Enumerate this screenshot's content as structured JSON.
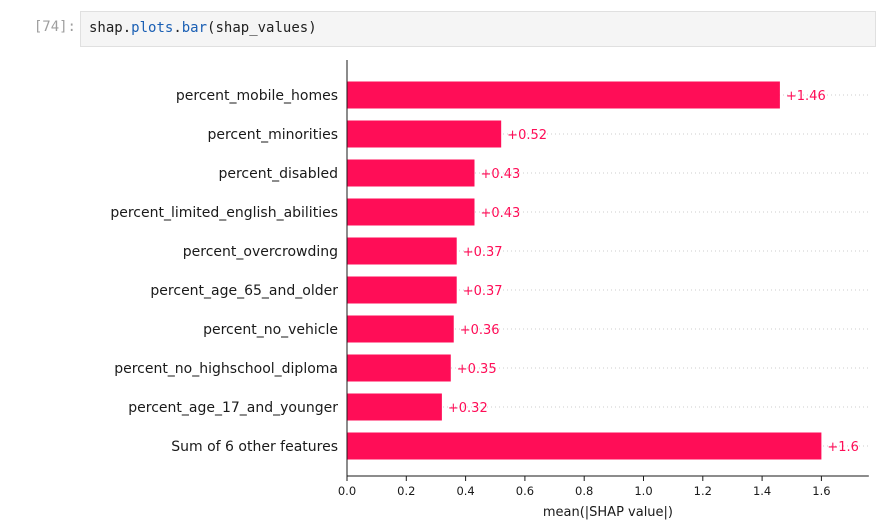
{
  "cell": {
    "prompt": "[74]:",
    "code_obj": "shap",
    "code_dot1": ".",
    "code_mod": "plots",
    "code_dot2": ".",
    "code_fn": "bar",
    "code_args": "(shap_values)"
  },
  "chart_data": {
    "type": "bar",
    "orientation": "horizontal",
    "categories": [
      "percent_mobile_homes",
      "percent_minorities",
      "percent_disabled",
      "percent_limited_english_abilities",
      "percent_overcrowding",
      "percent_age_65_and_older",
      "percent_no_vehicle",
      "percent_no_highschool_diploma",
      "percent_age_17_and_younger",
      "Sum of 6 other features"
    ],
    "values": [
      1.46,
      0.52,
      0.43,
      0.43,
      0.37,
      0.37,
      0.36,
      0.35,
      0.32,
      1.6
    ],
    "data_labels": [
      "+1.46",
      "+0.52",
      "+0.43",
      "+0.43",
      "+0.37",
      "+0.37",
      "+0.36",
      "+0.35",
      "+0.32",
      "+1.6"
    ],
    "xlabel": "mean(|SHAP value|)",
    "xticks": [
      "0.0",
      "0.2",
      "0.4",
      "0.6",
      "0.8",
      "1.0",
      "1.2",
      "1.4",
      "1.6"
    ],
    "xlim": [
      0,
      1.76
    ],
    "bar_color": "#ff0d57",
    "label_color": "#ff0d57",
    "grid": "dotted horizontal"
  }
}
